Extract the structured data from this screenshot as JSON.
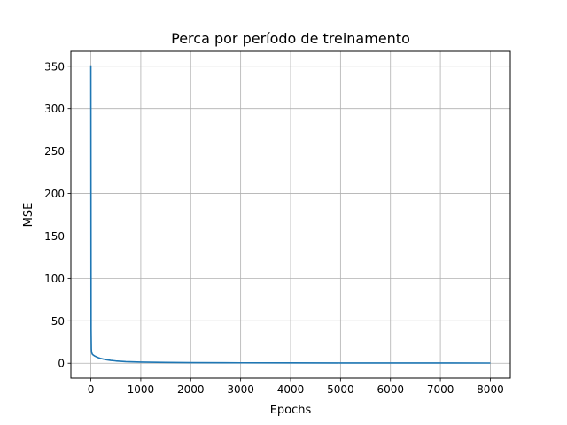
{
  "chart_data": {
    "type": "line",
    "title": "Perca por período de treinamento",
    "xlabel": "Epochs",
    "ylabel": "MSE",
    "xlim": [
      -400,
      8400
    ],
    "ylim": [
      -17.5,
      367.5
    ],
    "xticks": [
      0,
      1000,
      2000,
      3000,
      4000,
      5000,
      6000,
      7000,
      8000
    ],
    "yticks": [
      0,
      50,
      100,
      150,
      200,
      250,
      300,
      350
    ],
    "grid": true,
    "line_color": "#1f77b4",
    "series": [
      {
        "x": [
          0,
          5,
          10,
          15,
          20,
          30,
          50,
          75,
          100,
          150,
          200,
          300,
          400,
          500,
          700,
          1000,
          1500,
          2000,
          3000,
          4000,
          5000,
          6000,
          7000,
          8000
        ],
        "values": [
          351,
          40,
          17,
          13,
          12,
          10.5,
          9.5,
          8.5,
          7.8,
          6.5,
          5.5,
          4.2,
          3.3,
          2.7,
          1.9,
          1.3,
          0.9,
          0.7,
          0.5,
          0.4,
          0.35,
          0.3,
          0.28,
          0.25
        ]
      }
    ]
  }
}
